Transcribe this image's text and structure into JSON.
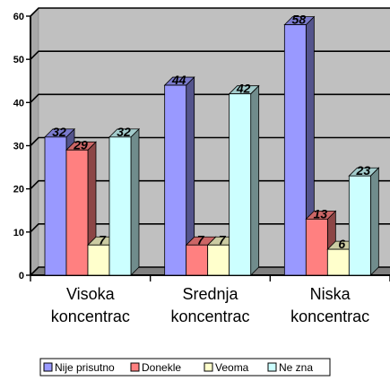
{
  "chart_data": {
    "type": "bar",
    "title": "",
    "xlabel": "",
    "ylabel": "",
    "categories": [
      [
        "Visoka",
        "koncentrac"
      ],
      [
        "Srednja",
        "koncentrac"
      ],
      [
        "Niska",
        "koncentrac"
      ]
    ],
    "series": [
      {
        "name": "Nije prisutno",
        "values": [
          32,
          44,
          58
        ],
        "color": "#9999ff"
      },
      {
        "name": "Donekle",
        "values": [
          29,
          7,
          13
        ],
        "color": "#ff8080"
      },
      {
        "name": "Veoma",
        "values": [
          7,
          7,
          6
        ],
        "color": "#ffffcc"
      },
      {
        "name": "Ne zna",
        "values": [
          32,
          42,
          23
        ],
        "color": "#ccffff"
      }
    ],
    "ylim": [
      0,
      60
    ],
    "yticks": [
      0,
      10,
      20,
      30,
      40,
      50,
      60
    ],
    "grid": true,
    "three_d": true,
    "data_labels": true,
    "legend_position": "bottom",
    "wall_color": "#c0c0c0"
  }
}
